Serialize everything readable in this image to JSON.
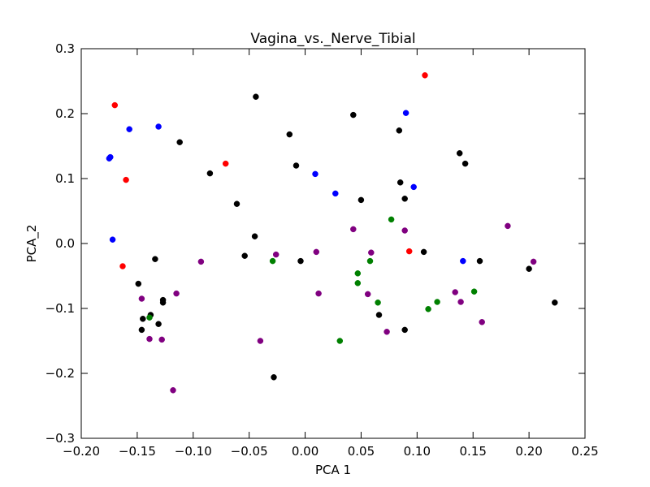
{
  "chart_data": {
    "type": "scatter",
    "title": "Vagina_vs._Nerve_Tibial",
    "xlabel": "PCA 1",
    "ylabel": "PCA_2",
    "xlim": [
      -0.2,
      0.25
    ],
    "ylim": [
      -0.3,
      0.3
    ],
    "x_ticks": [
      -0.2,
      -0.15,
      -0.1,
      -0.05,
      0.0,
      0.05,
      0.1,
      0.15,
      0.2,
      0.25
    ],
    "x_tick_labels": [
      "−0.20",
      "−0.15",
      "−0.10",
      "−0.05",
      "0.00",
      "0.05",
      "0.10",
      "0.15",
      "0.20",
      "0.25"
    ],
    "y_ticks": [
      -0.3,
      -0.2,
      -0.1,
      0.0,
      0.1,
      0.2,
      0.3
    ],
    "y_tick_labels": [
      "−0.3",
      "−0.2",
      "−0.1",
      "0.0",
      "0.1",
      "0.2",
      "0.3"
    ],
    "grid": false,
    "legend": "none",
    "series": [
      {
        "color": "#ff0000",
        "points": [
          [
            -0.17,
            0.213
          ],
          [
            -0.16,
            0.098
          ],
          [
            -0.163,
            -0.035
          ],
          [
            -0.071,
            0.123
          ],
          [
            0.107,
            0.259
          ],
          [
            0.093,
            -0.012
          ]
        ]
      },
      {
        "color": "#0000ff",
        "points": [
          [
            -0.175,
            0.131
          ],
          [
            -0.174,
            0.133
          ],
          [
            -0.157,
            0.176
          ],
          [
            -0.131,
            0.18
          ],
          [
            -0.172,
            0.006
          ],
          [
            0.009,
            0.107
          ],
          [
            0.027,
            0.077
          ],
          [
            0.09,
            0.201
          ],
          [
            0.097,
            0.087
          ],
          [
            0.141,
            -0.027
          ]
        ]
      },
      {
        "color": "#000000",
        "points": [
          [
            -0.112,
            0.156
          ],
          [
            -0.085,
            0.108
          ],
          [
            -0.061,
            0.061
          ],
          [
            -0.044,
            0.226
          ],
          [
            -0.045,
            0.011
          ],
          [
            -0.054,
            -0.019
          ],
          [
            -0.014,
            0.168
          ],
          [
            -0.008,
            0.12
          ],
          [
            -0.004,
            -0.027
          ],
          [
            0.043,
            0.198
          ],
          [
            0.05,
            0.067
          ],
          [
            0.084,
            0.174
          ],
          [
            0.085,
            0.094
          ],
          [
            0.089,
            0.069
          ],
          [
            0.106,
            -0.013
          ],
          [
            0.138,
            0.139
          ],
          [
            0.143,
            0.123
          ],
          [
            0.156,
            -0.027
          ],
          [
            0.2,
            -0.039
          ],
          [
            0.223,
            -0.091
          ],
          [
            -0.134,
            -0.024
          ],
          [
            -0.149,
            -0.062
          ],
          [
            -0.145,
            -0.116
          ],
          [
            -0.146,
            -0.133
          ],
          [
            -0.138,
            -0.11
          ],
          [
            -0.131,
            -0.124
          ],
          [
            -0.127,
            -0.087
          ],
          [
            -0.127,
            -0.091
          ],
          [
            0.066,
            -0.11
          ],
          [
            0.089,
            -0.133
          ],
          [
            -0.028,
            -0.206
          ]
        ]
      },
      {
        "color": "#800080",
        "points": [
          [
            -0.146,
            -0.085
          ],
          [
            -0.139,
            -0.147
          ],
          [
            -0.128,
            -0.148
          ],
          [
            -0.115,
            -0.077
          ],
          [
            -0.118,
            -0.226
          ],
          [
            -0.093,
            -0.028
          ],
          [
            -0.04,
            -0.15
          ],
          [
            -0.026,
            -0.017
          ],
          [
            0.01,
            -0.013
          ],
          [
            0.012,
            -0.077
          ],
          [
            0.043,
            0.022
          ],
          [
            0.056,
            -0.078
          ],
          [
            0.059,
            -0.014
          ],
          [
            0.073,
            -0.136
          ],
          [
            0.089,
            0.02
          ],
          [
            0.134,
            -0.075
          ],
          [
            0.139,
            -0.09
          ],
          [
            0.158,
            -0.121
          ],
          [
            0.181,
            0.027
          ],
          [
            0.204,
            -0.028
          ]
        ]
      },
      {
        "color": "#008000",
        "points": [
          [
            -0.139,
            -0.114
          ],
          [
            -0.029,
            -0.027
          ],
          [
            0.031,
            -0.15
          ],
          [
            0.047,
            -0.046
          ],
          [
            0.047,
            -0.061
          ],
          [
            0.058,
            -0.027
          ],
          [
            0.065,
            -0.091
          ],
          [
            0.077,
            0.037
          ],
          [
            0.11,
            -0.101
          ],
          [
            0.118,
            -0.09
          ],
          [
            0.151,
            -0.074
          ]
        ]
      }
    ]
  }
}
